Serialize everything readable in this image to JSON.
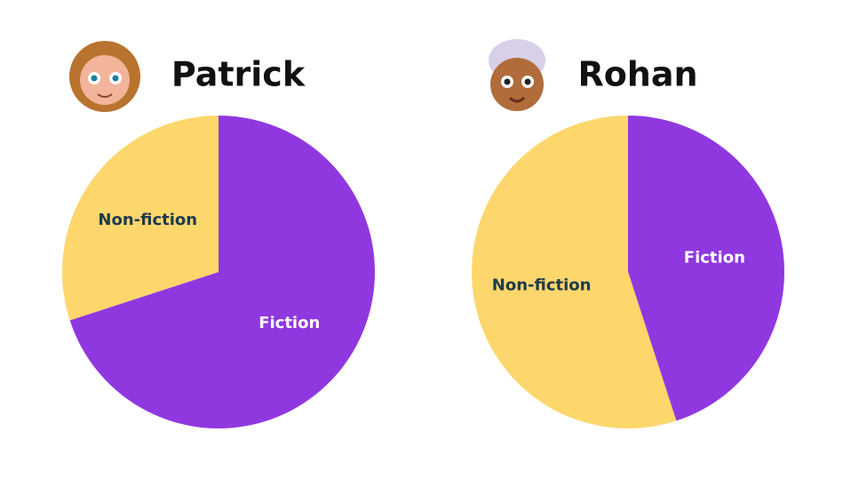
{
  "chart_data": [
    {
      "type": "pie",
      "title": "Patrick",
      "categories": [
        "Fiction",
        "Non-fiction"
      ],
      "values": [
        70,
        30
      ],
      "colors": [
        "#9038e0",
        "#fdd66c"
      ]
    },
    {
      "type": "pie",
      "title": "Rohan",
      "categories": [
        "Fiction",
        "Non-fiction"
      ],
      "values": [
        45,
        55
      ],
      "colors": [
        "#9038e0",
        "#fdd66c"
      ]
    }
  ]
}
